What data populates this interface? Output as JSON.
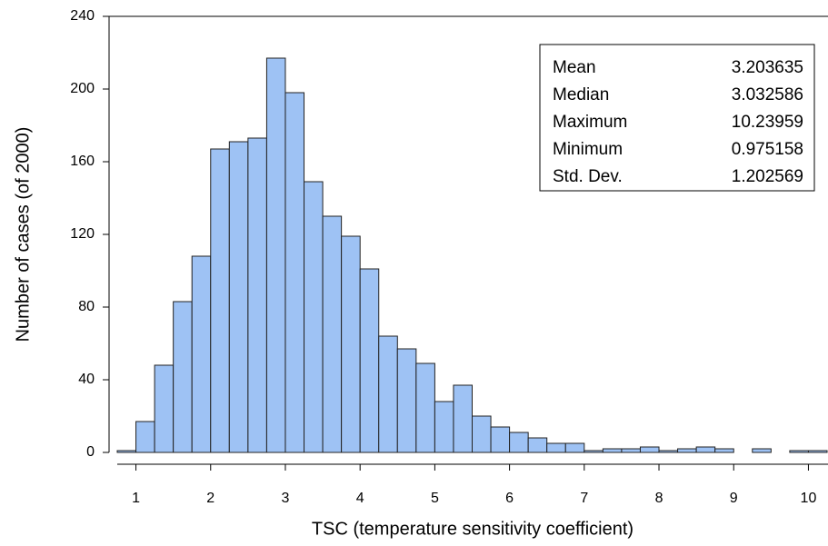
{
  "chart_data": {
    "type": "histogram",
    "xlabel": "TSC (temperature sensitivity coefficient)",
    "ylabel": "Number of cases (of 2000)",
    "bins": [
      0.75,
      1,
      1.25,
      1.5,
      1.75,
      2,
      2.25,
      2.5,
      2.75,
      3,
      3.25,
      3.5,
      3.75,
      4,
      4.25,
      4.5,
      4.75,
      5,
      5.25,
      5.5,
      5.75,
      6,
      6.25,
      6.5,
      6.75,
      7,
      7.25,
      7.5,
      7.75,
      8,
      8.25,
      8.5,
      8.75,
      9,
      9.25,
      9.5,
      9.75,
      10,
      10.25
    ],
    "values": [
      1,
      17,
      48,
      83,
      108,
      167,
      171,
      173,
      217,
      198,
      149,
      130,
      119,
      101,
      64,
      57,
      49,
      28,
      37,
      20,
      14,
      11,
      8,
      5,
      5,
      1,
      2,
      2,
      3,
      1,
      2,
      3,
      2,
      0,
      2,
      0,
      1,
      1
    ],
    "color": "#9ec2f4",
    "xlim": [
      0.75,
      10.25
    ],
    "xticks": [
      1,
      2,
      3,
      4,
      5,
      6,
      7,
      8,
      9,
      10
    ],
    "ylim": [
      0,
      240
    ],
    "yticks": [
      0,
      40,
      80,
      120,
      160,
      200,
      240
    ],
    "stats": [
      {
        "label": "Mean",
        "value": 3.203635
      },
      {
        "label": "Median",
        "value": 3.032586
      },
      {
        "label": "Maximum",
        "value": 10.23959
      },
      {
        "label": "Minimum",
        "value": 0.975158
      },
      {
        "label": "Std. Dev.",
        "value": 1.202569
      }
    ]
  }
}
